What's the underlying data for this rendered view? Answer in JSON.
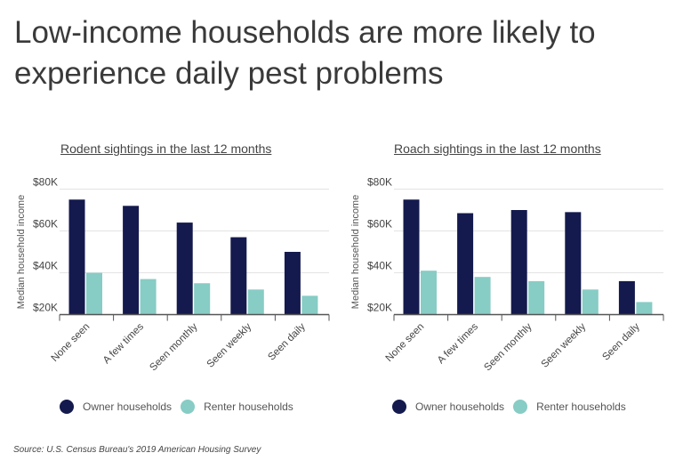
{
  "title": "Low-income households are more likely to experience daily pest problems",
  "source": "Source:  U.S. Census Bureau's 2019 American Housing Survey",
  "colors": {
    "owner": "#141a4d",
    "renter": "#87ccc5"
  },
  "chart_data": [
    {
      "type": "bar",
      "title": "Rodent sightings in the last 12 months",
      "ylabel": "Median household income",
      "categories": [
        "None seen",
        "A few times",
        "Seen monthly",
        "Seen weekly",
        "Seen daily"
      ],
      "series": [
        {
          "name": "Owner households",
          "values": [
            75000,
            72000,
            64000,
            57000,
            50000
          ]
        },
        {
          "name": "Renter households",
          "values": [
            40000,
            37000,
            35000,
            32000,
            29000
          ]
        }
      ],
      "ylim": [
        20000,
        80000
      ],
      "yticks": [
        "$20K",
        "$40K",
        "$60K",
        "$80K"
      ],
      "grid": true,
      "legend": "bottom"
    },
    {
      "type": "bar",
      "title": "Roach sightings in the last 12 months",
      "ylabel": "Median household income",
      "categories": [
        "None seen",
        "A few times",
        "Seen monthly",
        "Seen weekly",
        "Seen daily"
      ],
      "series": [
        {
          "name": "Owner households",
          "values": [
            75000,
            68500,
            70000,
            69000,
            36000
          ]
        },
        {
          "name": "Renter households",
          "values": [
            41000,
            38000,
            36000,
            32000,
            26000
          ]
        }
      ],
      "ylim": [
        20000,
        80000
      ],
      "yticks": [
        "$20K",
        "$40K",
        "$60K",
        "$80K"
      ],
      "grid": true,
      "legend": "bottom"
    }
  ]
}
